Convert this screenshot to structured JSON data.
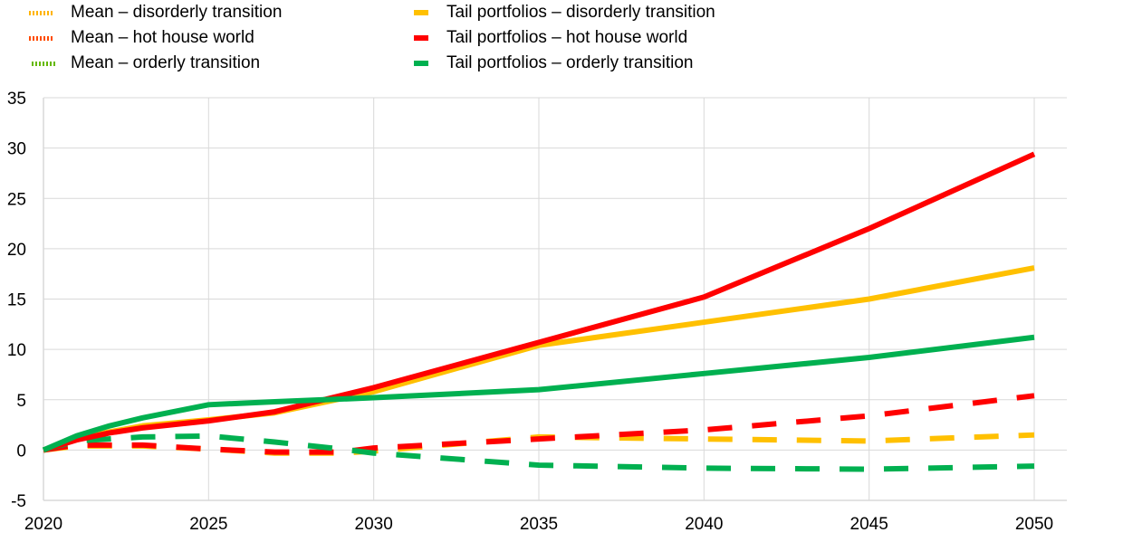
{
  "chart_data": {
    "type": "line",
    "title": "",
    "xlabel": "",
    "ylabel": "",
    "xlim": [
      2020,
      2050
    ],
    "ylim": [
      -5,
      35
    ],
    "yticks": [
      -5,
      0,
      5,
      10,
      15,
      20,
      25,
      30,
      35
    ],
    "xticks": [
      2020,
      2025,
      2030,
      2035,
      2040,
      2045,
      2050
    ],
    "grid": true,
    "legend_position": "top",
    "legend": [
      {
        "label": "Mean – disorderly transition",
        "color": "#FFB400",
        "style": "dotted"
      },
      {
        "label": "Mean – hot house world",
        "color": "#FF4B00",
        "style": "dotted"
      },
      {
        "label": "Mean – orderly transition",
        "color": "#65B800",
        "style": "dotted"
      },
      {
        "label": "Tail portfolios – disorderly transition",
        "color": "#FFC000",
        "style": "dashed"
      },
      {
        "label": "Tail portfolios – hot house world",
        "color": "#FF0000",
        "style": "dashed"
      },
      {
        "label": "Tail portfolios – orderly transition",
        "color": "#00B050",
        "style": "dashed"
      }
    ],
    "series": [
      {
        "name": "solid-disorderly",
        "color": "#FFC000",
        "dash": false,
        "x": [
          2020,
          2021,
          2022,
          2023,
          2025,
          2027,
          2030,
          2035,
          2040,
          2045,
          2050
        ],
        "y": [
          0,
          1.1,
          1.8,
          2.4,
          3.0,
          3.7,
          5.8,
          10.4,
          12.7,
          15.0,
          18.1
        ]
      },
      {
        "name": "solid-hot-house",
        "color": "#FF0000",
        "dash": false,
        "x": [
          2020,
          2021,
          2022,
          2023,
          2025,
          2027,
          2030,
          2035,
          2040,
          2045,
          2050
        ],
        "y": [
          0,
          1.0,
          1.7,
          2.2,
          2.9,
          3.8,
          6.2,
          10.7,
          15.2,
          22.0,
          29.4
        ]
      },
      {
        "name": "solid-orderly",
        "color": "#00B050",
        "dash": false,
        "x": [
          2020,
          2021,
          2022,
          2023,
          2025,
          2027,
          2030,
          2035,
          2040,
          2045,
          2050
        ],
        "y": [
          0,
          1.4,
          2.4,
          3.2,
          4.5,
          4.8,
          5.2,
          6.0,
          7.6,
          9.2,
          11.2
        ]
      },
      {
        "name": "dashed-disorderly",
        "color": "#FFC000",
        "dash": true,
        "x": [
          2020,
          2021,
          2023,
          2025,
          2027,
          2029,
          2030,
          2035,
          2040,
          2045,
          2050
        ],
        "y": [
          0,
          0.4,
          0.4,
          0.1,
          -0.3,
          -0.3,
          -0.1,
          1.3,
          1.1,
          0.9,
          1.5
        ]
      },
      {
        "name": "dashed-hot-house",
        "color": "#FF0000",
        "dash": true,
        "x": [
          2020,
          2021,
          2023,
          2025,
          2027,
          2029,
          2030,
          2035,
          2040,
          2045,
          2050
        ],
        "y": [
          0,
          0.5,
          0.5,
          0.1,
          -0.2,
          -0.2,
          0.2,
          1.1,
          2.0,
          3.4,
          5.4
        ]
      },
      {
        "name": "dashed-orderly",
        "color": "#00B050",
        "dash": true,
        "x": [
          2020,
          2021,
          2023,
          2025,
          2027,
          2029,
          2030,
          2035,
          2040,
          2045,
          2050
        ],
        "y": [
          0,
          0.9,
          1.3,
          1.4,
          0.8,
          0.1,
          -0.3,
          -1.5,
          -1.8,
          -1.9,
          -1.6
        ]
      }
    ]
  }
}
